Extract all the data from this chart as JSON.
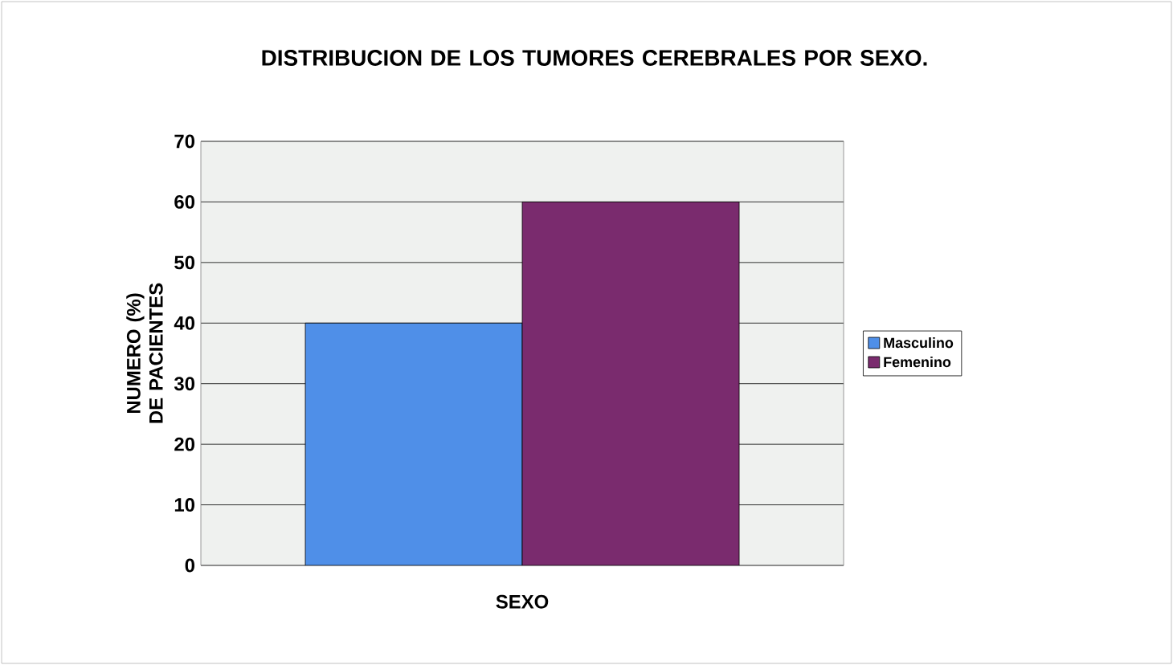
{
  "chart_data": {
    "type": "bar",
    "title": "DISTRIBUCION DE LOS TUMORES CEREBRALES POR SEXO.",
    "xlabel": "SEXO",
    "ylabel": "NUMERO (%) DE PACIENTES",
    "categories": [
      null
    ],
    "series": [
      {
        "name": "Masculino",
        "color": "#4f8fe8",
        "values": [
          40
        ]
      },
      {
        "name": "Femenino",
        "color": "#7a2b6e",
        "values": [
          60
        ]
      }
    ],
    "ylim": [
      0,
      70
    ],
    "yticks": [
      0,
      10,
      20,
      30,
      40,
      50,
      60,
      70
    ],
    "grid": "y",
    "legend": "right"
  }
}
